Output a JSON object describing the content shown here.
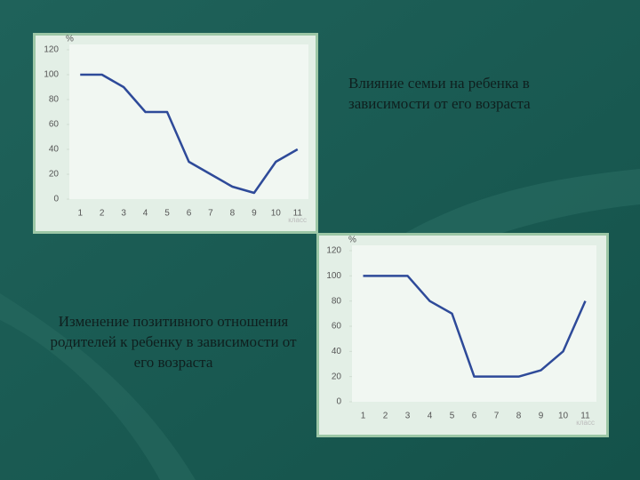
{
  "chart_data": [
    {
      "type": "line",
      "title": "Влияние семьи на ребенка в зависимости от его возраста",
      "y_label": "%",
      "x_label": "класс",
      "categories": [
        "1",
        "2",
        "3",
        "4",
        "5",
        "6",
        "7",
        "8",
        "9",
        "10",
        "11"
      ],
      "values": [
        100,
        100,
        90,
        70,
        70,
        30,
        20,
        10,
        5,
        30,
        40
      ],
      "color": "#2e4a99",
      "ylim": [
        0,
        120
      ],
      "yticks": [
        0,
        20,
        40,
        60,
        80,
        100,
        120
      ],
      "grid": false
    },
    {
      "type": "line",
      "title": "Изменение позитивного отношения родителей к ребенку в зависимости от его возраста",
      "y_label": "%",
      "x_label": "класс",
      "categories": [
        "1",
        "2",
        "3",
        "4",
        "5",
        "6",
        "7",
        "8",
        "9",
        "10",
        "11"
      ],
      "values": [
        100,
        100,
        100,
        80,
        70,
        20,
        20,
        20,
        25,
        40,
        80
      ],
      "color": "#2e4a99",
      "ylim": [
        0,
        120
      ],
      "yticks": [
        0,
        20,
        40,
        60,
        80,
        100,
        120
      ],
      "grid": false
    }
  ]
}
